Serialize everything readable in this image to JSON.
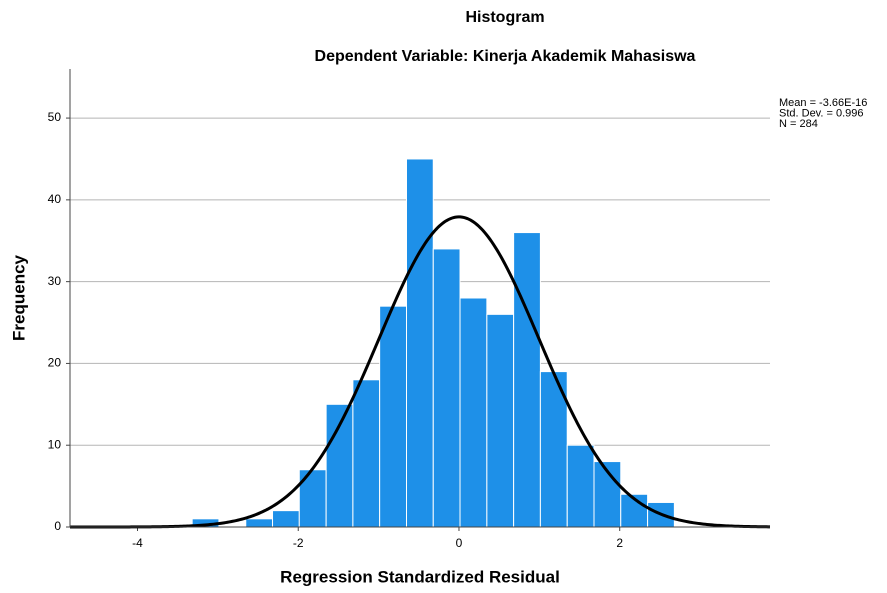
{
  "chart_data": {
    "type": "histogram",
    "title": "Histogram",
    "subtitle": "Dependent Variable: Kinerja Akademik Mahasiswa",
    "x_label": "Regression Standardized Residual",
    "y_label": "Frequency",
    "bins": [
      -3.32,
      -2.987,
      -2.653,
      -2.32,
      -1.987,
      -1.653,
      -1.32,
      -0.987,
      -0.653,
      -0.32,
      0.013,
      0.347,
      0.68,
      1.013,
      1.347,
      1.68,
      2.013,
      2.347,
      2.68
    ],
    "values": [
      1,
      0,
      1,
      2,
      7,
      15,
      18,
      27,
      45,
      34,
      28,
      26,
      36,
      19,
      10,
      8,
      4,
      3
    ],
    "color": "#1e90e8",
    "curve_color": "#000000",
    "stats": [
      {
        "value": -3.66e-16,
        "label": "Mean = -3.66E-16"
      },
      {
        "value": 0.996,
        "label": "Std. Dev. = 0.996"
      },
      {
        "value": 284,
        "label": "N = 284"
      }
    ],
    "xlim": [
      -4.84,
      3.87
    ],
    "ylim": [
      0,
      56
    ],
    "xticks": [
      -4,
      -2,
      0,
      2
    ],
    "yticks": [
      0,
      10,
      20,
      30,
      40,
      50
    ],
    "grid": true
  }
}
